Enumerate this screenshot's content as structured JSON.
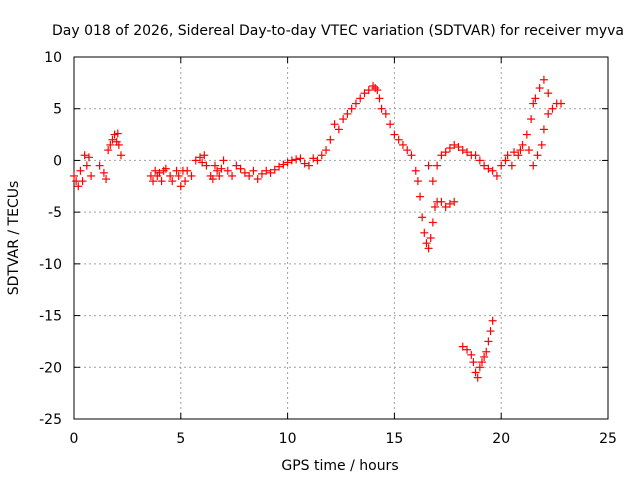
{
  "chart_data": {
    "type": "scatter",
    "title": "Day 018 of 2026, Sidereal Day-to-day VTEC variation (SDTVAR) for receiver myva",
    "xlabel": "GPS time / hours",
    "ylabel": "SDTVAR / TECUs",
    "xlim": [
      0,
      25
    ],
    "ylim": [
      -25,
      10
    ],
    "xticks": [
      0,
      5,
      10,
      15,
      20,
      25
    ],
    "yticks": [
      -25,
      -20,
      -15,
      -10,
      -5,
      0,
      5,
      10
    ],
    "grid": true,
    "marker": "+",
    "color": "#ff0000",
    "series": [
      {
        "name": "SDTVAR",
        "x": [
          0.0,
          0.1,
          0.2,
          0.3,
          0.4,
          0.5,
          0.6,
          0.7,
          0.8,
          1.2,
          1.4,
          1.5,
          1.6,
          1.7,
          1.8,
          1.9,
          2.0,
          2.05,
          2.1,
          2.2,
          3.6,
          3.7,
          3.8,
          3.9,
          4.0,
          4.1,
          4.2,
          4.3,
          4.5,
          4.6,
          4.8,
          4.9,
          5.0,
          5.1,
          5.2,
          5.3,
          5.5,
          5.7,
          5.9,
          6.0,
          6.1,
          6.2,
          6.4,
          6.5,
          6.6,
          6.7,
          6.8,
          6.9,
          7.0,
          7.2,
          7.4,
          7.6,
          7.8,
          8.0,
          8.2,
          8.4,
          8.6,
          8.8,
          9.0,
          9.2,
          9.4,
          9.6,
          9.8,
          10.0,
          10.2,
          10.4,
          10.6,
          10.8,
          11.0,
          11.2,
          11.4,
          11.6,
          11.8,
          12.0,
          12.2,
          12.4,
          12.6,
          12.8,
          13.0,
          13.2,
          13.4,
          13.6,
          13.8,
          14.0,
          14.1,
          14.2,
          14.3,
          14.4,
          14.6,
          14.8,
          15.0,
          15.2,
          15.4,
          15.6,
          15.8,
          16.0,
          16.1,
          16.2,
          16.3,
          16.4,
          16.5,
          16.6,
          16.7,
          16.8,
          16.9,
          17.0,
          17.2,
          17.4,
          17.6,
          17.8,
          16.6,
          16.8,
          17.0,
          17.2,
          17.4,
          17.6,
          17.8,
          18.0,
          18.2,
          18.4,
          18.6,
          18.8,
          19.0,
          19.2,
          19.4,
          19.6,
          18.2,
          18.4,
          18.6,
          18.7,
          18.8,
          18.9,
          19.0,
          19.1,
          19.2,
          19.3,
          19.4,
          19.5,
          19.6,
          19.8,
          20.0,
          20.2,
          20.3,
          20.5,
          20.6,
          20.8,
          20.9,
          21.0,
          21.2,
          21.4,
          21.5,
          21.6,
          21.8,
          22.0,
          22.2,
          21.3,
          21.5,
          21.7,
          21.9,
          22.0,
          22.2,
          22.4,
          22.6,
          22.8
        ],
        "y": [
          -1.5,
          -2.0,
          -2.5,
          -1.0,
          -2.0,
          0.5,
          -0.5,
          0.3,
          -1.5,
          -0.5,
          -1.2,
          -1.8,
          1.0,
          1.5,
          2.0,
          2.5,
          1.8,
          2.6,
          1.5,
          0.5,
          -1.5,
          -2.0,
          -1.0,
          -1.5,
          -1.2,
          -2.0,
          -1.0,
          -0.8,
          -1.5,
          -2.0,
          -1.0,
          -1.5,
          -2.5,
          -1.0,
          -2.0,
          -1.0,
          -1.5,
          0.0,
          0.3,
          -0.2,
          0.5,
          -0.5,
          -1.5,
          -1.8,
          -0.5,
          -1.0,
          -1.5,
          -0.8,
          0.0,
          -1.0,
          -1.5,
          -0.5,
          -0.8,
          -1.2,
          -1.5,
          -1.0,
          -1.8,
          -1.3,
          -1.0,
          -1.2,
          -0.9,
          -0.6,
          -0.4,
          -0.2,
          0.0,
          0.1,
          0.2,
          -0.3,
          -0.5,
          0.2,
          0.0,
          0.5,
          1.0,
          2.0,
          3.5,
          3.0,
          4.0,
          4.5,
          5.0,
          5.5,
          6.0,
          6.5,
          6.8,
          7.2,
          7.0,
          6.8,
          6.0,
          5.0,
          4.5,
          3.5,
          2.5,
          2.0,
          1.5,
          1.0,
          0.5,
          -1.0,
          -2.0,
          -3.5,
          -5.5,
          -7.0,
          -8.0,
          -8.5,
          -7.5,
          -6.0,
          -4.5,
          -4.0,
          -4.0,
          -4.5,
          -4.2,
          -4.0,
          -0.5,
          -2.0,
          -0.5,
          0.5,
          0.8,
          1.2,
          1.5,
          1.3,
          1.0,
          0.8,
          0.5,
          0.5,
          0.0,
          -0.5,
          -0.8,
          -1.0,
          -18.0,
          -18.3,
          -18.8,
          -19.5,
          -20.5,
          -21.0,
          -20.0,
          -19.5,
          -19.0,
          -18.5,
          -17.5,
          -16.5,
          -15.5,
          -1.5,
          -0.5,
          0.0,
          0.5,
          -0.5,
          0.8,
          0.5,
          1.0,
          1.5,
          2.5,
          4.0,
          5.5,
          6.0,
          7.0,
          7.8,
          6.5,
          1.0,
          -0.5,
          0.5,
          1.5,
          3.0,
          4.5,
          5.0,
          5.5,
          5.5
        ]
      }
    ]
  }
}
